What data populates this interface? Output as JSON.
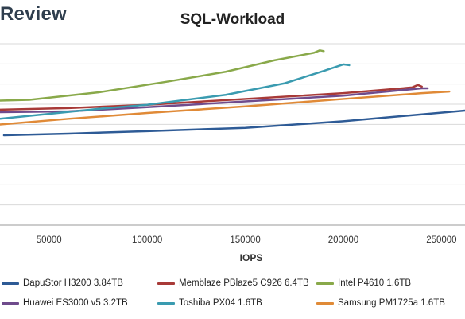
{
  "brand": {
    "text": "Review"
  },
  "chart_data": {
    "type": "line",
    "title": "SQL-Workload",
    "xlabel": "IOPS",
    "ylabel": "",
    "xlim": [
      25000,
      262000
    ],
    "ylim": [
      0,
      11
    ],
    "x_ticks": [
      "50000",
      "100000",
      "150000",
      "200000",
      "250000"
    ],
    "grid": true,
    "legend_position": "bottom",
    "series": [
      {
        "name": "DapuStor H3200 3.84TB",
        "color": "#2e5b96",
        "points": [
          [
            27000,
            5.45
          ],
          [
            60000,
            5.55
          ],
          [
            100000,
            5.7
          ],
          [
            150000,
            5.9
          ],
          [
            200000,
            6.3
          ],
          [
            262000,
            6.95
          ]
        ]
      },
      {
        "name": "Memblaze PBlaze5 C926 6.4TB",
        "color": "#a83a38",
        "points": [
          [
            25000,
            7.0
          ],
          [
            60000,
            7.1
          ],
          [
            100000,
            7.3
          ],
          [
            150000,
            7.65
          ],
          [
            200000,
            8.0
          ],
          [
            235000,
            8.35
          ],
          [
            238000,
            8.5
          ],
          [
            240000,
            8.4
          ]
        ]
      },
      {
        "name": "Intel P4610 1.6TB",
        "color": "#89a94a",
        "points": [
          [
            25000,
            7.55
          ],
          [
            40000,
            7.6
          ],
          [
            75000,
            8.05
          ],
          [
            110000,
            8.7
          ],
          [
            140000,
            9.3
          ],
          [
            165000,
            10.0
          ],
          [
            185000,
            10.45
          ],
          [
            188000,
            10.6
          ],
          [
            190000,
            10.55
          ]
        ]
      },
      {
        "name": "Huawei ES3000 v5 3.2TB",
        "color": "#6f4b8c",
        "points": [
          [
            25000,
            6.85
          ],
          [
            60000,
            6.9
          ],
          [
            100000,
            7.15
          ],
          [
            150000,
            7.5
          ],
          [
            200000,
            7.85
          ],
          [
            240000,
            8.3
          ],
          [
            243000,
            8.3
          ]
        ]
      },
      {
        "name": "Toshiba PX04 1.6TB",
        "color": "#3a9bb0",
        "points": [
          [
            25000,
            6.45
          ],
          [
            50000,
            6.75
          ],
          [
            75000,
            7.05
          ],
          [
            100000,
            7.3
          ],
          [
            140000,
            7.9
          ],
          [
            170000,
            8.6
          ],
          [
            190000,
            9.35
          ],
          [
            200000,
            9.75
          ],
          [
            203000,
            9.7
          ]
        ]
      },
      {
        "name": "Samsung PM1725a 1.6TB",
        "color": "#e08a37",
        "points": [
          [
            25000,
            6.1
          ],
          [
            60000,
            6.45
          ],
          [
            100000,
            6.8
          ],
          [
            150000,
            7.2
          ],
          [
            200000,
            7.65
          ],
          [
            240000,
            8.0
          ],
          [
            254000,
            8.1
          ]
        ]
      }
    ]
  }
}
